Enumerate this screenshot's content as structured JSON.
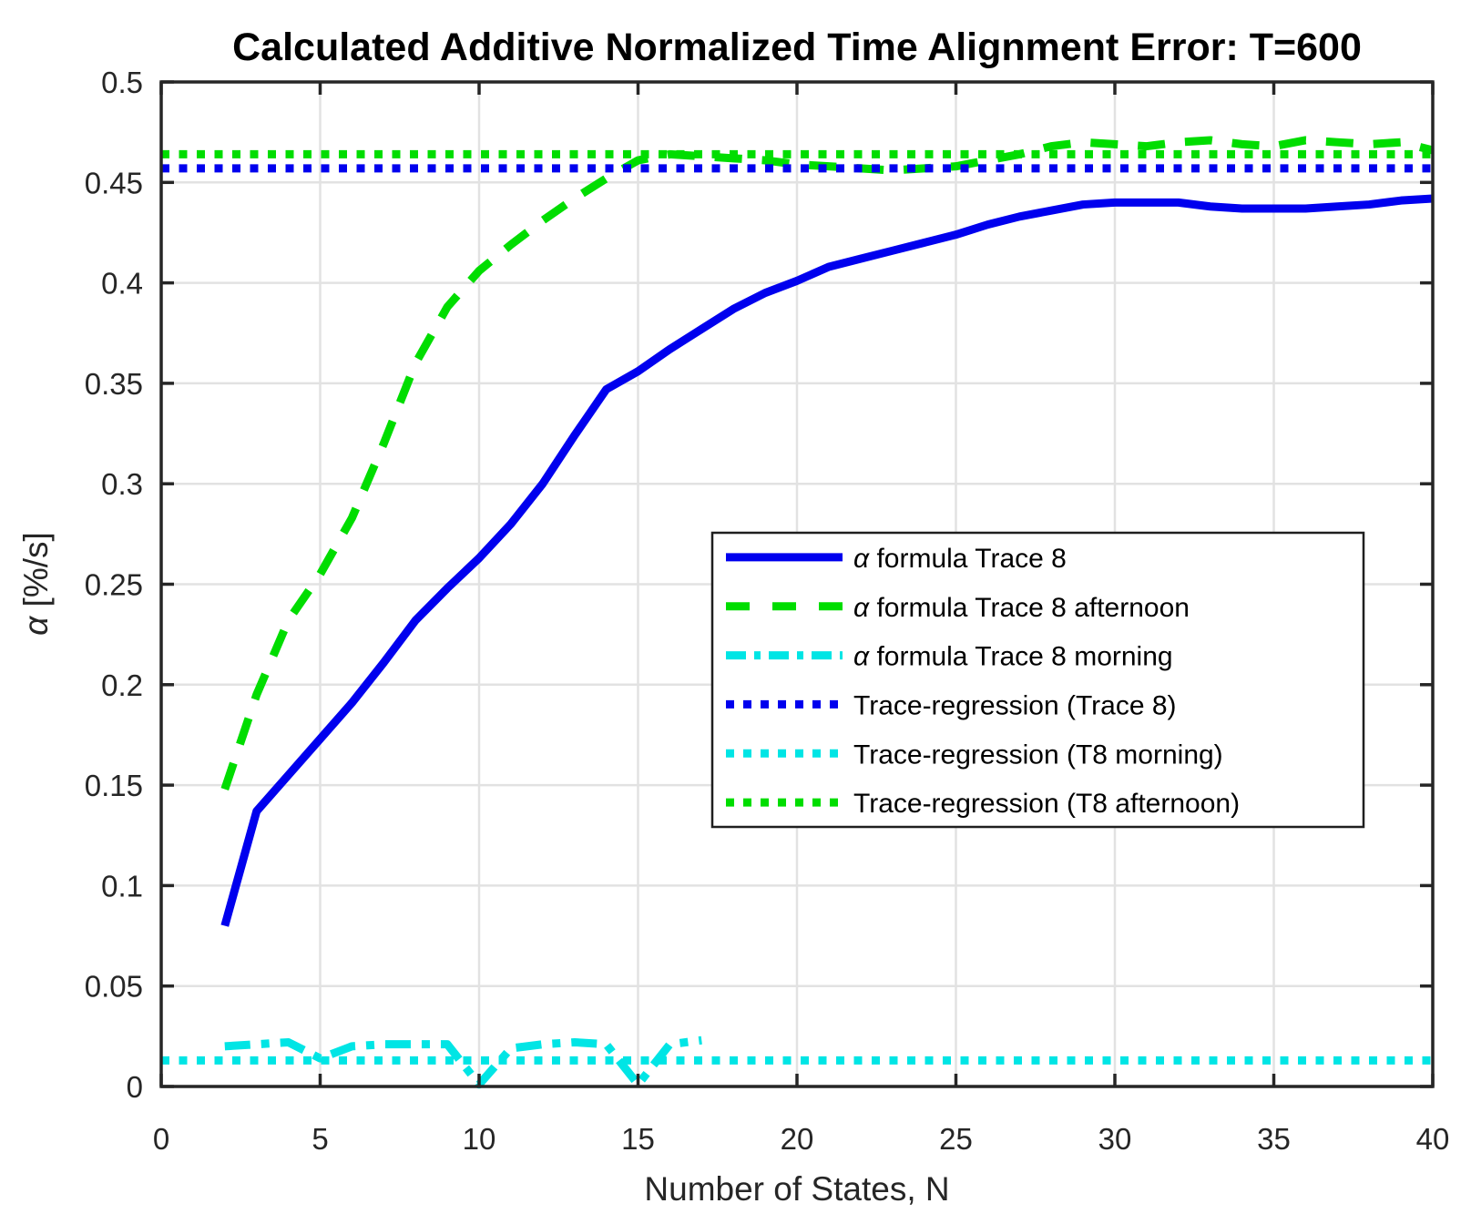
{
  "chart_data": {
    "type": "line",
    "title": "Calculated Additive Normalized Time Alignment Error: T=600",
    "xlabel": "Number of States, N",
    "ylabel": "α [%/s]",
    "xlim": [
      0,
      40
    ],
    "ylim": [
      0,
      0.5
    ],
    "xticks": [
      0,
      5,
      10,
      15,
      20,
      25,
      30,
      35,
      40
    ],
    "yticks": [
      0,
      0.05,
      0.1,
      0.15,
      0.2,
      0.25,
      0.3,
      0.35,
      0.4,
      0.45,
      0.5
    ],
    "grid": true,
    "legend_position": "middle-right",
    "colors": {
      "blue": "#0000ee",
      "green": "#00dd00",
      "cyan": "#00e5e5",
      "grid": "#e2e2e2",
      "axis": "#262626"
    },
    "series": [
      {
        "name": "α formula Trace 8",
        "style": "solid",
        "color": "#0000ee",
        "x": [
          2,
          3,
          4,
          5,
          6,
          7,
          8,
          9,
          10,
          11,
          12,
          13,
          14,
          15,
          16,
          17,
          18,
          19,
          20,
          21,
          22,
          23,
          24,
          25,
          26,
          27,
          28,
          29,
          30,
          31,
          32,
          33,
          34,
          35,
          36,
          37,
          38,
          39,
          40
        ],
        "y": [
          0.08,
          0.137,
          0.155,
          0.173,
          0.191,
          0.211,
          0.232,
          0.248,
          0.263,
          0.28,
          0.3,
          0.324,
          0.347,
          0.356,
          0.367,
          0.377,
          0.387,
          0.395,
          0.401,
          0.408,
          0.412,
          0.416,
          0.42,
          0.424,
          0.429,
          0.433,
          0.436,
          0.439,
          0.44,
          0.44,
          0.44,
          0.438,
          0.437,
          0.437,
          0.437,
          0.438,
          0.439,
          0.441,
          0.442
        ]
      },
      {
        "name": "α formula Trace 8 afternoon",
        "style": "dashed",
        "color": "#00dd00",
        "x": [
          2,
          3,
          4,
          5,
          6,
          7,
          8,
          9,
          10,
          11,
          12,
          13,
          14,
          15,
          16,
          17,
          18,
          19,
          20,
          21,
          22,
          23,
          24,
          25,
          26,
          27,
          28,
          29,
          30,
          31,
          32,
          33,
          34,
          35,
          36,
          37,
          38,
          39,
          40
        ],
        "y": [
          0.148,
          0.195,
          0.232,
          0.255,
          0.283,
          0.32,
          0.36,
          0.388,
          0.406,
          0.419,
          0.431,
          0.442,
          0.452,
          0.461,
          0.464,
          0.463,
          0.462,
          0.461,
          0.459,
          0.458,
          0.457,
          0.456,
          0.457,
          0.458,
          0.461,
          0.464,
          0.468,
          0.47,
          0.469,
          0.468,
          0.47,
          0.471,
          0.469,
          0.468,
          0.471,
          0.47,
          0.469,
          0.47,
          0.466
        ]
      },
      {
        "name": "α formula Trace 8 morning",
        "style": "dashdot",
        "color": "#00e5e5",
        "x": [
          2,
          3,
          4,
          5,
          6,
          7,
          8,
          9,
          10,
          11,
          12,
          13,
          14,
          15,
          16,
          17
        ],
        "y": [
          0.02,
          0.021,
          0.022,
          0.014,
          0.02,
          0.021,
          0.021,
          0.021,
          0.001,
          0.019,
          0.021,
          0.022,
          0.021,
          0.001,
          0.021,
          0.023
        ]
      }
    ],
    "regression_lines": [
      {
        "name": "Trace-regression (Trace 8)",
        "style": "dotted",
        "color": "#0000ee",
        "value": 0.457
      },
      {
        "name": "Trace-regression (T8 morning)",
        "style": "dotted",
        "color": "#00e5e5",
        "value": 0.013
      },
      {
        "name": "Trace-regression (T8 afternoon)",
        "style": "dotted",
        "color": "#00dd00",
        "value": 0.464
      }
    ],
    "legend": [
      "α formula Trace 8",
      "α formula Trace 8 afternoon",
      "α formula Trace 8 morning",
      "Trace-regression (Trace 8)",
      "Trace-regression (T8 morning)",
      "Trace-regression (T8 afternoon)"
    ]
  }
}
